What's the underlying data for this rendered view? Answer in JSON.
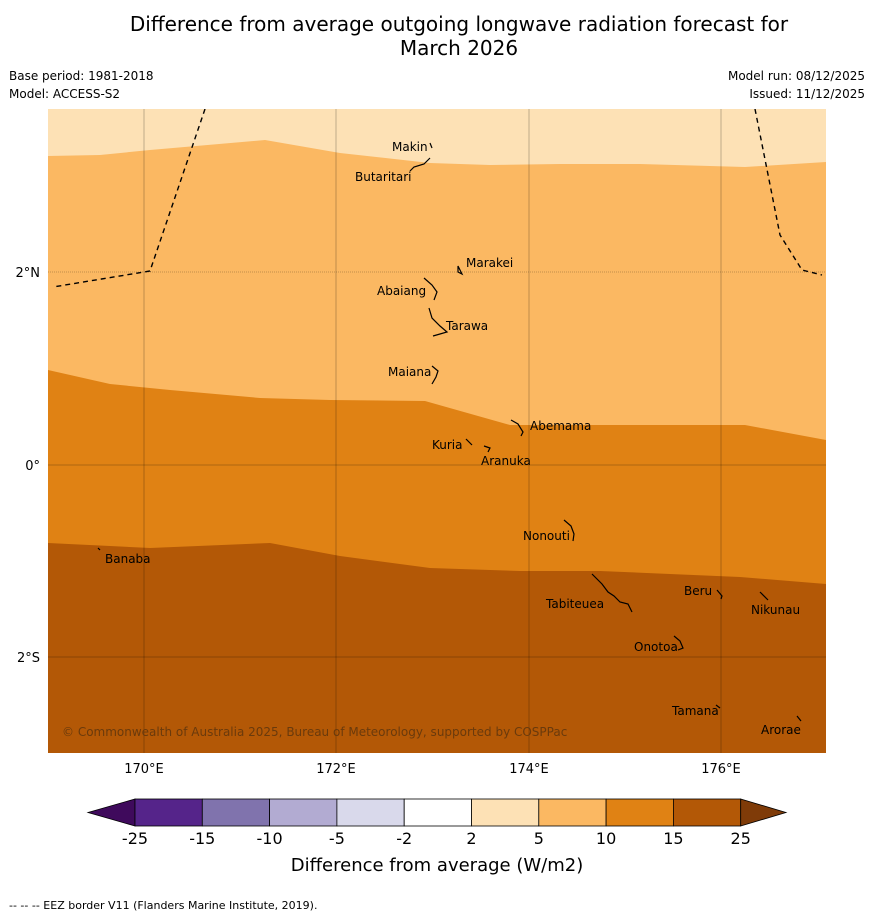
{
  "title_line1": "Difference from average outgoing longwave radiation forecast for",
  "title_line2": "March 2026",
  "base_period": "Base period: 1981-2018",
  "model": "Model: ACCESS-S2",
  "model_run": "Model run: 08/12/2025",
  "issued": "Issued: 11/12/2025",
  "copyright": "© Commonwealth of Australia 2025, Bureau of Meteorology, supported by COSPPac",
  "lat_labels": [
    "2°N",
    "0°",
    "2°S"
  ],
  "lon_labels": [
    "170°E",
    "172°E",
    "174°E",
    "176°E"
  ],
  "places": [
    "Makin",
    "Butaritari",
    "Marakei",
    "Abaiang",
    "Tarawa",
    "Maiana",
    "Abemama",
    "Kuria",
    "Aranuka",
    "Nonouti",
    "Banaba",
    "Beru",
    "Tabiteuea",
    "Nikunau",
    "Onotoa",
    "Tamana",
    "Arorae"
  ],
  "colorbar": {
    "label": "Difference from average (W/m2)",
    "ticks": [
      "-25",
      "-15",
      "-10",
      "-5",
      "-2",
      "2",
      "5",
      "10",
      "15",
      "25"
    ],
    "colors": [
      "#3f0a5c",
      "#55248a",
      "#8073ad",
      "#b2abd2",
      "#d9d9eb",
      "#ffffff",
      "#fde1b5",
      "#fbb862",
      "#e08214",
      "#b35806",
      "#7f3b08"
    ]
  },
  "footer": "--  --  -- EEZ border V11 (Flanders Marine Institute, 2019)."
}
